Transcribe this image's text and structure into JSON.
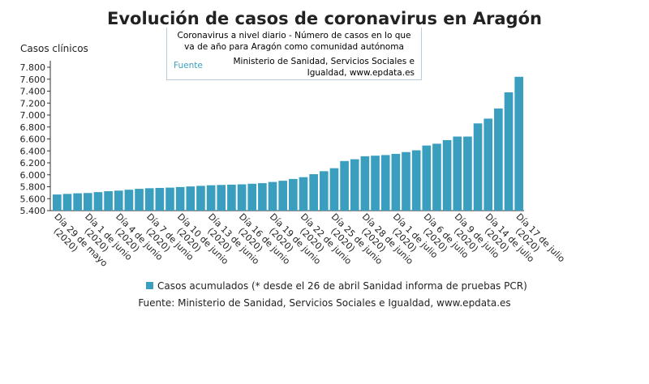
{
  "chart_data": {
    "type": "bar",
    "title": "Evolución de casos de coronavirus en Aragón",
    "tooltip": {
      "text": "Coronavirus a nivel diario - Número de casos en lo que va de año para Aragón como comunidad autónoma",
      "label": "Fuente",
      "source": "Ministerio de Sanidad, Servicios Sociales e Igualdad, www.epdata.es"
    },
    "y_label": "Casos clínicos",
    "categories": [
      "Día 29 de mayo (2020)",
      null,
      null,
      "Día 1 de junio (2020)",
      null,
      null,
      "Día 4 de junio (2020)",
      null,
      null,
      "Día 7 de junio (2020)",
      null,
      null,
      "Día 10 de junio (2020)",
      null,
      null,
      "Día 13 de junio (2020)",
      null,
      null,
      "Día 16 de junio (2020)",
      null,
      null,
      "Día 19 de junio (2020)",
      null,
      null,
      "Día 22 de junio (2020)",
      null,
      null,
      "Día 25 de junio (2020)",
      null,
      null,
      "Día 28 de junio (2020)",
      null,
      null,
      "Día 1 de julio (2020)",
      null,
      null,
      "Día 6 de julio (2020)",
      null,
      null,
      "Día 9 de julio (2020)",
      null,
      null,
      "Día 14 de julio (2020)",
      null,
      null,
      "Día 17 de julio (2020)"
    ],
    "series": [
      {
        "name": "Casos acumulados (* desde el 26 de abril Sanidad informa de pruebas PCR)",
        "color": "#3a9fbf",
        "values": [
          5670,
          5680,
          5690,
          5695,
          5710,
          5725,
          5735,
          5750,
          5765,
          5775,
          5780,
          5785,
          5795,
          5805,
          5815,
          5825,
          5830,
          5835,
          5840,
          5850,
          5860,
          5880,
          5900,
          5930,
          5960,
          6010,
          6060,
          6110,
          6230,
          6260,
          6310,
          6320,
          6330,
          6350,
          6380,
          6410,
          6490,
          6520,
          6580,
          6640,
          6640,
          6860,
          6940,
          7110,
          7380,
          7640
        ]
      }
    ],
    "ylim": [
      5400,
      7800
    ],
    "yticks": [
      {
        "value": 5400,
        "label": "5.400"
      },
      {
        "value": 5600,
        "label": "5.600"
      },
      {
        "value": 5800,
        "label": "5.800"
      },
      {
        "value": 6000,
        "label": "6.000"
      },
      {
        "value": 6200,
        "label": "6.200"
      },
      {
        "value": 6400,
        "label": "6.400"
      },
      {
        "value": 6600,
        "label": "6.600"
      },
      {
        "value": 6800,
        "label": "6.800"
      },
      {
        "value": 7000,
        "label": "7.000"
      },
      {
        "value": 7200,
        "label": "7.200"
      },
      {
        "value": 7400,
        "label": "7.400"
      },
      {
        "value": 7600,
        "label": "7.600"
      },
      {
        "value": 7800,
        "label": "7.800"
      }
    ],
    "source": "Fuente: Ministerio de Sanidad, Servicios Sociales e Igualdad, www.epdata.es"
  }
}
